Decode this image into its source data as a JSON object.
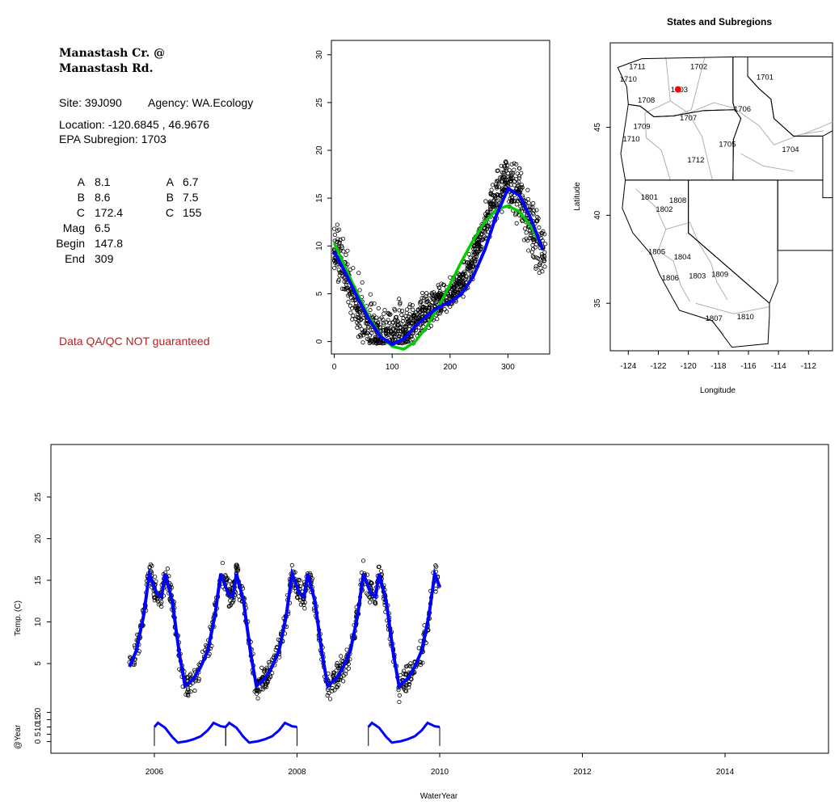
{
  "station": {
    "name_line1": "Manastash Cr. @",
    "name_line2": "Manastash Rd.",
    "site": "Site: 39J090",
    "agency": "Agency: WA.Ecology",
    "location": "Location: -120.6845 , 46.9676",
    "epa_subregion": "EPA Subregion: 1703",
    "qa_note": "Data QA/QC NOT guaranteed",
    "qa_color": "#b22222"
  },
  "params": {
    "left": [
      {
        "label": "A",
        "value": "8.1"
      },
      {
        "label": "B",
        "value": "8.6"
      },
      {
        "label": "C",
        "value": "172.4"
      },
      {
        "label": "Mag",
        "value": "6.5"
      },
      {
        "label": "Begin",
        "value": "147.8"
      },
      {
        "label": "End",
        "value": "309"
      }
    ],
    "right": [
      {
        "label": "A",
        "value": "6.7"
      },
      {
        "label": "B",
        "value": "7.5"
      },
      {
        "label": "C",
        "value": "155"
      }
    ]
  },
  "chart_data": [
    {
      "id": "seasonal",
      "type": "scatter",
      "title": "",
      "xlabel": "",
      "ylabel": "",
      "xlim": [
        -5,
        372
      ],
      "ylim": [
        -1.3,
        31.5
      ],
      "xticks": [
        0,
        100,
        200,
        300
      ],
      "yticks": [
        0,
        5,
        10,
        15,
        20,
        25,
        30
      ],
      "colors": {
        "points": "#000000",
        "blue_fit": "#0000ff",
        "green_fit": "#00cc00"
      },
      "series": [
        {
          "kind": "points",
          "x": [
            2,
            10,
            18,
            26,
            34,
            42,
            50,
            58,
            66,
            74,
            82,
            90,
            98,
            106,
            114,
            122,
            130,
            138,
            146,
            154,
            162,
            170,
            178,
            186,
            194,
            202,
            210,
            218,
            226,
            234,
            242,
            250,
            258,
            266,
            274,
            282,
            290,
            298,
            306,
            314,
            322,
            330,
            338,
            346,
            354,
            362
          ],
          "y": [
            9.8,
            8.5,
            7.2,
            6.0,
            4.5,
            3.5,
            2.3,
            1.6,
            0.9,
            0.5,
            0.3,
            0.6,
            1.0,
            1.5,
            1.6,
            1.1,
            1.5,
            2.0,
            2.4,
            3.0,
            3.2,
            3.8,
            4.1,
            4.4,
            4.6,
            5.0,
            5.5,
            6.0,
            6.7,
            7.8,
            9.0,
            10.2,
            11.8,
            13.0,
            14.3,
            15.5,
            16.4,
            16.8,
            16.3,
            15.6,
            14.7,
            13.6,
            12.5,
            11.4,
            10.0,
            9.3
          ]
        },
        {
          "kind": "line",
          "x": [
            0,
            20,
            40,
            60,
            80,
            100,
            120,
            140,
            160,
            180,
            200,
            220,
            240,
            260,
            280,
            300,
            320,
            340,
            360
          ],
          "y": [
            9.4,
            7.1,
            4.6,
            2.3,
            0.5,
            -0.3,
            0.3,
            1.6,
            2.7,
            3.6,
            4.1,
            5.0,
            6.8,
            9.6,
            13.2,
            16.0,
            15.3,
            12.8,
            9.6
          ]
        },
        {
          "kind": "line",
          "x": [
            0,
            20,
            40,
            60,
            80,
            100,
            120,
            140,
            160,
            180,
            200,
            220,
            240,
            260,
            280,
            300,
            320,
            340,
            360
          ],
          "y": [
            10.3,
            7.6,
            5.0,
            2.6,
            0.6,
            -0.5,
            -0.8,
            0.0,
            1.6,
            3.6,
            6.0,
            8.4,
            10.6,
            12.5,
            13.8,
            14.2,
            13.6,
            12.0,
            9.8
          ]
        }
      ]
    },
    {
      "id": "map",
      "type": "scatter",
      "title": "States and Subregions",
      "xlabel": "Longitude",
      "ylabel": "Latitude",
      "xlim": [
        -125.2,
        -110.4
      ],
      "ylim": [
        32.3,
        49.8
      ],
      "xticks": [
        -124,
        -122,
        -120,
        -118,
        -116,
        -114,
        -112
      ],
      "yticks": [
        35,
        40,
        45
      ],
      "marker": {
        "lon": -120.6845,
        "lat": 46.9676,
        "color": "#ff0000"
      },
      "regions": [
        {
          "label": "1711",
          "lon": -123.4,
          "lat": 48.3
        },
        {
          "label": "1702",
          "lon": -119.3,
          "lat": 48.3
        },
        {
          "label": "1710",
          "lon": -124.0,
          "lat": 47.6
        },
        {
          "label": "1701",
          "lon": -114.9,
          "lat": 47.7
        },
        {
          "label": "1703",
          "lon": -120.6,
          "lat": 47.0
        },
        {
          "label": "1708",
          "lon": -122.8,
          "lat": 46.4
        },
        {
          "label": "1706",
          "lon": -116.4,
          "lat": 45.9
        },
        {
          "label": "1707",
          "lon": -120.0,
          "lat": 45.4
        },
        {
          "label": "1709",
          "lon": -123.1,
          "lat": 44.9
        },
        {
          "label": "1710",
          "lon": -123.8,
          "lat": 44.2
        },
        {
          "label": "1705",
          "lon": -117.4,
          "lat": 43.9
        },
        {
          "label": "1704",
          "lon": -113.2,
          "lat": 43.6
        },
        {
          "label": "1712",
          "lon": -119.5,
          "lat": 43.0
        },
        {
          "label": "1801",
          "lon": -122.6,
          "lat": 40.9
        },
        {
          "label": "1808",
          "lon": -120.7,
          "lat": 40.7
        },
        {
          "label": "1802",
          "lon": -121.6,
          "lat": 40.2
        },
        {
          "label": "1805",
          "lon": -122.1,
          "lat": 37.8
        },
        {
          "label": "1804",
          "lon": -120.4,
          "lat": 37.5
        },
        {
          "label": "1806",
          "lon": -121.2,
          "lat": 36.3
        },
        {
          "label": "1803",
          "lon": -119.4,
          "lat": 36.4
        },
        {
          "label": "1809",
          "lon": -117.9,
          "lat": 36.5
        },
        {
          "label": "1807",
          "lon": -118.3,
          "lat": 34.0
        },
        {
          "label": "1810",
          "lon": -116.2,
          "lat": 34.1
        }
      ]
    },
    {
      "id": "timeseries",
      "type": "line",
      "title": "",
      "xlabel": "WaterYear",
      "ylabel": "Temp. (C)",
      "xlim": [
        2004.55,
        2015.45
      ],
      "ylim": [
        1.0,
        30.0
      ],
      "xticks": [
        2006,
        2008,
        2010,
        2012,
        2014
      ],
      "yticks": [
        5,
        10,
        15,
        20,
        25
      ],
      "colors": {
        "points": "#000000",
        "fit": "#0000ff"
      },
      "start": 2005.65,
      "end": 2010.0,
      "peak_year_offsets": [
        0.0,
        2006.0,
        2006.83,
        2007.83,
        2008.83,
        2009.83
      ]
    },
    {
      "id": "yearly",
      "type": "line",
      "title": "",
      "xlabel": "",
      "ylabel": "@Year",
      "ylim": [
        -3,
        23
      ],
      "yticks": [
        0,
        10,
        20
      ],
      "minor_yticks": [
        0,
        5,
        10,
        15,
        20
      ],
      "ytick_labels": [
        "0",
        "5",
        "10",
        "15",
        "20"
      ],
      "years": [
        2006,
        2007,
        2009
      ],
      "color": "#0000ff"
    }
  ]
}
